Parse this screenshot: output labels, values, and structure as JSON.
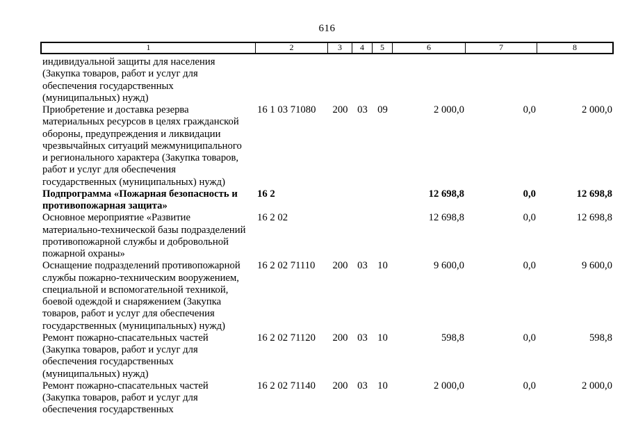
{
  "page": {
    "number": "616",
    "colors": {
      "text": "#000000",
      "background": "#ffffff"
    }
  },
  "table": {
    "header": [
      "1",
      "2",
      "3",
      "4",
      "5",
      "6",
      "7",
      "8"
    ],
    "rows": [
      {
        "bold": false,
        "name_lines": [
          "индивидуальной защиты для населения",
          "(Закупка товаров, работ и услуг для",
          "обеспечения государственных",
          "(муниципальных) нужд)"
        ],
        "code": "",
        "expense_type": "",
        "section": "",
        "subsection": "",
        "amount_1": "",
        "amount_2": "",
        "amount_3": ""
      },
      {
        "bold": false,
        "name_lines": [
          "Приобретение и доставка резерва",
          "материальных ресурсов в целях гражданской",
          "обороны, предупреждения и ликвидации",
          "чрезвычайных ситуаций межмуниципального",
          "и регионального характера (Закупка товаров,",
          "работ и услуг для обеспечения",
          "государственных (муниципальных) нужд)"
        ],
        "code": "16 1 03 71080",
        "expense_type": "200",
        "section": "03",
        "subsection": "09",
        "amount_1": "2 000,0",
        "amount_2": "0,0",
        "amount_3": "2 000,0"
      },
      {
        "bold": true,
        "name_lines": [
          "Подпрограмма «Пожарная безопасность и",
          "противопожарная защита»"
        ],
        "code": "16 2",
        "expense_type": "",
        "section": "",
        "subsection": "",
        "amount_1": "12 698,8",
        "amount_2": "0,0",
        "amount_3": "12 698,8"
      },
      {
        "bold": false,
        "name_lines": [
          "Основное мероприятие «Развитие",
          "материально-технической базы подразделений",
          "противопожарной службы и добровольной",
          "пожарной охраны»"
        ],
        "code": "16 2 02",
        "expense_type": "",
        "section": "",
        "subsection": "",
        "amount_1": "12 698,8",
        "amount_2": "0,0",
        "amount_3": "12 698,8"
      },
      {
        "bold": false,
        "name_lines": [
          "Оснащение подразделений противопожарной",
          "службы пожарно-техническим вооружением,",
          "специальной и вспомогательной техникой,",
          "боевой одеждой и снаряжением (Закупка",
          "товаров, работ и услуг для обеспечения",
          "государственных (муниципальных) нужд)"
        ],
        "code": "16 2 02 71110",
        "expense_type": "200",
        "section": "03",
        "subsection": "10",
        "amount_1": "9 600,0",
        "amount_2": "0,0",
        "amount_3": "9 600,0"
      },
      {
        "bold": false,
        "name_lines": [
          "Ремонт пожарно-спасательных частей",
          "(Закупка товаров, работ и услуг для",
          "обеспечения государственных",
          "(муниципальных) нужд)"
        ],
        "code": "16 2 02 71120",
        "expense_type": "200",
        "section": "03",
        "subsection": "10",
        "amount_1": "598,8",
        "amount_2": "0,0",
        "amount_3": "598,8"
      },
      {
        "bold": false,
        "name_lines": [
          "Ремонт пожарно-спасательных частей",
          "(Закупка товаров, работ и услуг для",
          "обеспечения государственных"
        ],
        "code": "16 2 02 71140",
        "expense_type": "200",
        "section": "03",
        "subsection": "10",
        "amount_1": "2 000,0",
        "amount_2": "0,0",
        "amount_3": "2 000,0"
      }
    ]
  }
}
